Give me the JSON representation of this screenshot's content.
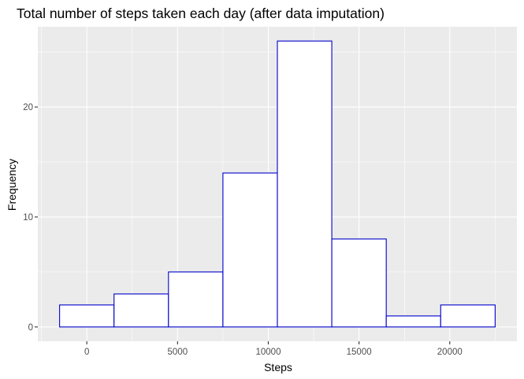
{
  "chart_data": {
    "type": "bar",
    "title": "Total number of steps taken each day (after data imputation)",
    "xlabel": "Steps",
    "ylabel": "Frequency",
    "bins": [
      {
        "x0": -1500,
        "x1": 1500,
        "count": 2
      },
      {
        "x0": 1500,
        "x1": 4500,
        "count": 3
      },
      {
        "x0": 4500,
        "x1": 7500,
        "count": 5
      },
      {
        "x0": 7500,
        "x1": 10500,
        "count": 14
      },
      {
        "x0": 10500,
        "x1": 13500,
        "count": 26
      },
      {
        "x0": 13500,
        "x1": 16500,
        "count": 8
      },
      {
        "x0": 16500,
        "x1": 19500,
        "count": 1
      },
      {
        "x0": 19500,
        "x1": 22500,
        "count": 2
      }
    ],
    "xlim": [
      -2700,
      23700
    ],
    "ylim": [
      -1.3,
      27.3
    ],
    "x_ticks": [
      0,
      5000,
      10000,
      15000,
      20000
    ],
    "x_tick_labels": [
      "0",
      "5000",
      "10000",
      "15000",
      "20000"
    ],
    "x_minor_ticks": [
      -2500,
      2500,
      7500,
      12500,
      17500,
      22500
    ],
    "y_ticks": [
      0,
      10,
      20
    ],
    "y_tick_labels": [
      "0",
      "10",
      "20"
    ],
    "y_minor_ticks": [
      5,
      15,
      25
    ],
    "grid": true,
    "legend": "none",
    "colors": {
      "panel_background": "#ebebeb",
      "grid_major": "#ffffff",
      "bar_fill": "#ffffff",
      "bar_outline": "#0000cd",
      "tick_label": "#4d4d4d",
      "tick_mark": "#333333"
    }
  }
}
